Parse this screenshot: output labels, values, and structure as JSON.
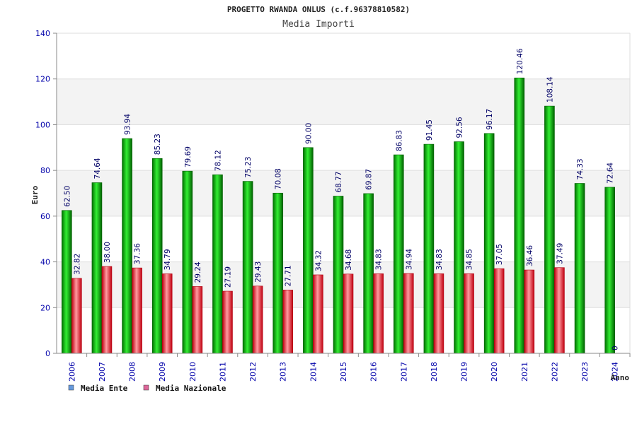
{
  "chart_data": {
    "type": "bar",
    "title": "PROGETTO RWANDA ONLUS (c.f.96378810582)",
    "subtitle": "Media Importi",
    "xlabel": "Anno",
    "ylabel": "Euro",
    "ylim": [
      0,
      140
    ],
    "yticks": [
      0,
      20,
      40,
      60,
      80,
      100,
      120,
      140
    ],
    "grid": true,
    "legend_position": "bottom-left",
    "categories": [
      "2006",
      "2007",
      "2008",
      "2009",
      "2010",
      "2011",
      "2012",
      "2013",
      "2014",
      "2015",
      "2016",
      "2017",
      "2018",
      "2019",
      "2020",
      "2021",
      "2022",
      "2023",
      "2024"
    ],
    "series": [
      {
        "name": "Media Ente",
        "legend_color": "#6699dd",
        "bar_color": "#10b010",
        "values": [
          62.5,
          74.64,
          93.94,
          85.23,
          79.69,
          78.12,
          75.23,
          70.08,
          90.0,
          68.77,
          69.87,
          86.83,
          91.45,
          92.56,
          96.17,
          120.46,
          108.14,
          74.33,
          72.64
        ],
        "labels": [
          "62.50",
          "74.64",
          "93.94",
          "85.23",
          "79.69",
          "78.12",
          "75.23",
          "70.08",
          "90.00",
          "68.77",
          "69.87",
          "86.83",
          "91.45",
          "92.56",
          "96.17",
          "120.46",
          "108.14",
          "74.33",
          "72.64"
        ]
      },
      {
        "name": "Media Nazionale",
        "legend_color": "#dd6699",
        "bar_color": "#e8303a",
        "values": [
          32.82,
          38.0,
          37.36,
          34.79,
          29.24,
          27.19,
          29.43,
          27.71,
          34.32,
          34.68,
          34.83,
          34.94,
          34.83,
          34.85,
          37.05,
          36.46,
          37.49,
          null,
          null
        ],
        "labels": [
          "32.82",
          "38.00",
          "37.36",
          "34.79",
          "29.24",
          "27.19",
          "29.43",
          "27.71",
          "34.32",
          "34.68",
          "34.83",
          "34.94",
          "34.83",
          "34.85",
          "37.05",
          "36.46",
          "37.49",
          "",
          ""
        ]
      }
    ],
    "extra_labels": [
      {
        "category": "2024",
        "text": "0"
      }
    ]
  }
}
